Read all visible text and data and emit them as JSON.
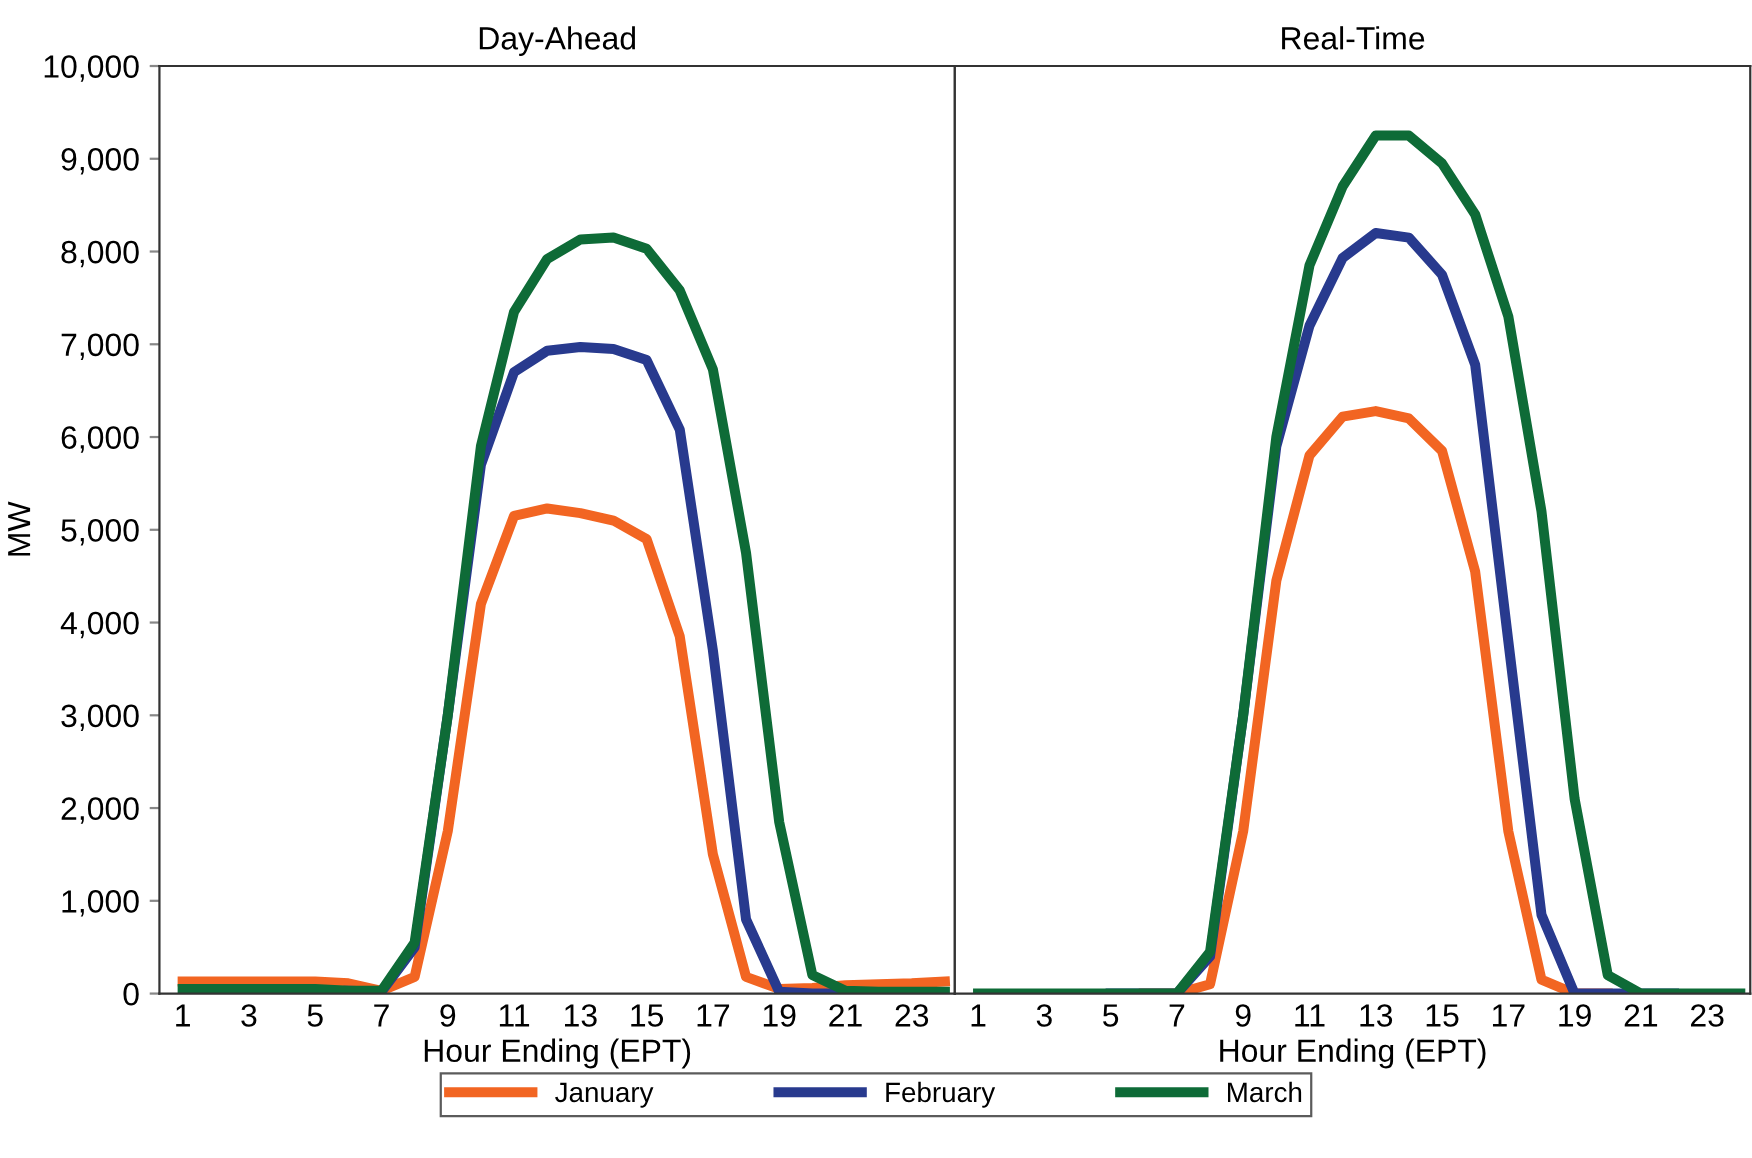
{
  "chart_data": [
    {
      "type": "line",
      "title": "Day-Ahead",
      "xlabel": "Hour Ending (EPT)",
      "ylabel": "MW",
      "x": [
        1,
        2,
        3,
        4,
        5,
        6,
        7,
        8,
        9,
        10,
        11,
        12,
        13,
        14,
        15,
        16,
        17,
        18,
        19,
        20,
        21,
        22,
        23,
        24
      ],
      "xlim": [
        0.3,
        24.3
      ],
      "xticks": [
        1,
        3,
        5,
        7,
        9,
        11,
        13,
        15,
        17,
        19,
        21,
        23
      ],
      "ylim": [
        0,
        10000
      ],
      "yticks": [
        {
          "value": 0,
          "label": "0"
        },
        {
          "value": 1000,
          "label": "1,000"
        },
        {
          "value": 2000,
          "label": "2,000"
        },
        {
          "value": 3000,
          "label": "3,000"
        },
        {
          "value": 4000,
          "label": "4,000"
        },
        {
          "value": 5000,
          "label": "5,000"
        },
        {
          "value": 6000,
          "label": "6,000"
        },
        {
          "value": 7000,
          "label": "7,000"
        },
        {
          "value": 8000,
          "label": "8,000"
        },
        {
          "value": 9000,
          "label": "9,000"
        },
        {
          "value": 10000,
          "label": "10,000"
        }
      ],
      "grid": false,
      "marker": "none",
      "line_style": "solid",
      "legend": "bottom",
      "series": [
        {
          "name": "January",
          "color": "#f26522",
          "values": [
            130,
            130,
            130,
            130,
            130,
            110,
            30,
            180,
            1750,
            4200,
            5150,
            5230,
            5180,
            5100,
            4900,
            3850,
            1500,
            180,
            50,
            60,
            90,
            100,
            110,
            130
          ]
        },
        {
          "name": "February",
          "color": "#283a8e",
          "values": [
            null,
            null,
            null,
            null,
            null,
            30,
            20,
            500,
            3000,
            5700,
            6700,
            6930,
            6970,
            6950,
            6830,
            6080,
            3700,
            800,
            20,
            0,
            0,
            0,
            null,
            null
          ]
        },
        {
          "name": "March",
          "color": "#0e6b37",
          "values": [
            50,
            50,
            50,
            50,
            50,
            30,
            30,
            550,
            3000,
            5900,
            7350,
            7920,
            8130,
            8150,
            8030,
            7580,
            6730,
            4750,
            1850,
            200,
            30,
            20,
            20,
            20
          ]
        }
      ]
    },
    {
      "type": "line",
      "title": "Real-Time",
      "xlabel": "Hour Ending (EPT)",
      "x": [
        1,
        2,
        3,
        4,
        5,
        6,
        7,
        8,
        9,
        10,
        11,
        12,
        13,
        14,
        15,
        16,
        17,
        18,
        19,
        20,
        21,
        22,
        23,
        24
      ],
      "xlim": [
        0.3,
        24.3
      ],
      "xticks": [
        1,
        3,
        5,
        7,
        9,
        11,
        13,
        15,
        17,
        19,
        21,
        23
      ],
      "ylim": [
        0,
        10000
      ],
      "tick_labels": "x",
      "grid": false,
      "marker": "none",
      "line_style": "solid",
      "series": [
        {
          "color": "#f26522",
          "values": [
            null,
            null,
            null,
            null,
            null,
            0,
            0,
            100,
            1750,
            4450,
            5800,
            6220,
            6280,
            6200,
            5850,
            4550,
            1750,
            150,
            0,
            0,
            null,
            null,
            null,
            null
          ]
        },
        {
          "color": "#283a8e",
          "values": [
            null,
            null,
            null,
            null,
            0,
            0,
            0,
            400,
            3000,
            5900,
            7200,
            7930,
            8200,
            8150,
            7750,
            6780,
            3800,
            850,
            0,
            0,
            0,
            0,
            null,
            null
          ]
        },
        {
          "color": "#0e6b37",
          "values": [
            0,
            0,
            0,
            0,
            0,
            0,
            0,
            450,
            3000,
            6000,
            7850,
            8700,
            9250,
            9250,
            8950,
            8400,
            7300,
            5200,
            2100,
            200,
            0,
            0,
            0,
            0
          ]
        }
      ]
    }
  ]
}
